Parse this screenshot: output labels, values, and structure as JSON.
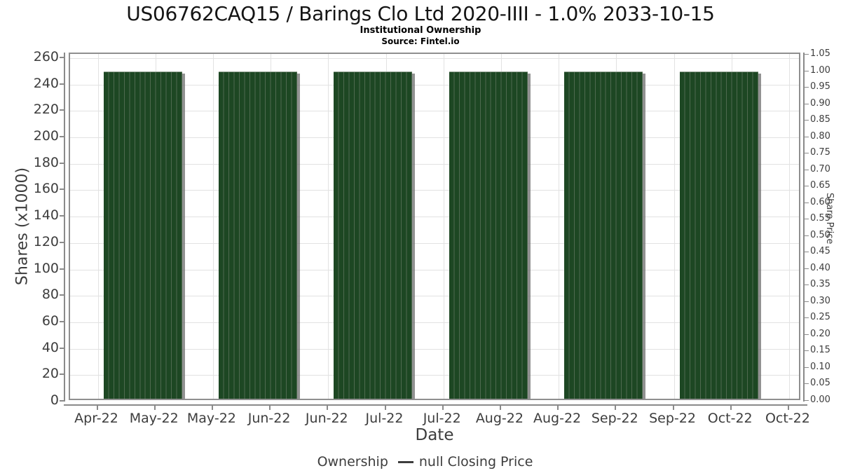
{
  "chart_data": {
    "type": "bar",
    "title": "US06762CAQ15 / Barings Clo Ltd 2020-IIII - 1.0% 2033-10-15",
    "subtitle": "Institutional Ownership",
    "source": "Source: Fintel.io",
    "x_axis": {
      "label": "Date",
      "tick_labels": [
        "Apr-22",
        "May-22",
        "May-22",
        "Jun-22",
        "Jun-22",
        "Jul-22",
        "Jul-22",
        "Aug-22",
        "Aug-22",
        "Sep-22",
        "Sep-22",
        "Oct-22",
        "Oct-22"
      ]
    },
    "y_left": {
      "label": "Shares (x1000)",
      "min": 0,
      "max": 260,
      "step": 20,
      "tick_labels": [
        "0",
        "20",
        "40",
        "60",
        "80",
        "100",
        "120",
        "140",
        "160",
        "180",
        "200",
        "220",
        "240",
        "260"
      ]
    },
    "y_right": {
      "label": "Share Price",
      "min": 0.0,
      "max": 1.05,
      "step": 0.05,
      "tick_labels": [
        "0.00",
        "0.05",
        "0.10",
        "0.15",
        "0.20",
        "0.25",
        "0.30",
        "0.35",
        "0.40",
        "0.45",
        "0.50",
        "0.55",
        "0.60",
        "0.65",
        "0.70",
        "0.75",
        "0.80",
        "0.85",
        "0.90",
        "0.95",
        "1.00",
        "1.05"
      ]
    },
    "series": [
      {
        "name": "Ownership",
        "type": "bar",
        "color": "#1d4723",
        "clusters": [
          {
            "period": "Apr-22 to May-22",
            "start_tick": 0,
            "value_thousands": 250,
            "daily_bars": 15
          },
          {
            "period": "May-22 to Jun-22",
            "start_tick": 2,
            "value_thousands": 250,
            "daily_bars": 15
          },
          {
            "period": "Jun-22 to Jul-22",
            "start_tick": 4,
            "value_thousands": 250,
            "daily_bars": 15
          },
          {
            "period": "Jul-22 to Aug-22",
            "start_tick": 6,
            "value_thousands": 250,
            "daily_bars": 15
          },
          {
            "period": "Aug-22 to Sep-22",
            "start_tick": 8,
            "value_thousands": 250,
            "daily_bars": 15
          },
          {
            "period": "Sep-22 to Oct-22",
            "start_tick": 10,
            "value_thousands": 250,
            "daily_bars": 15
          }
        ]
      },
      {
        "name": "null Closing Price",
        "type": "line",
        "color": "#3d3d3d",
        "values": []
      }
    ],
    "legend": {
      "position": "bottom"
    },
    "grid": true,
    "colors": {
      "bar": "#1d4723",
      "bar_stripe": "#4f6a50",
      "grid": "#e2e2e2",
      "plot_border": "#8f8f8f",
      "axis": "#8a8a8a",
      "tick_text": "#3d3d3d",
      "shadow": "#6e6e6e"
    }
  }
}
